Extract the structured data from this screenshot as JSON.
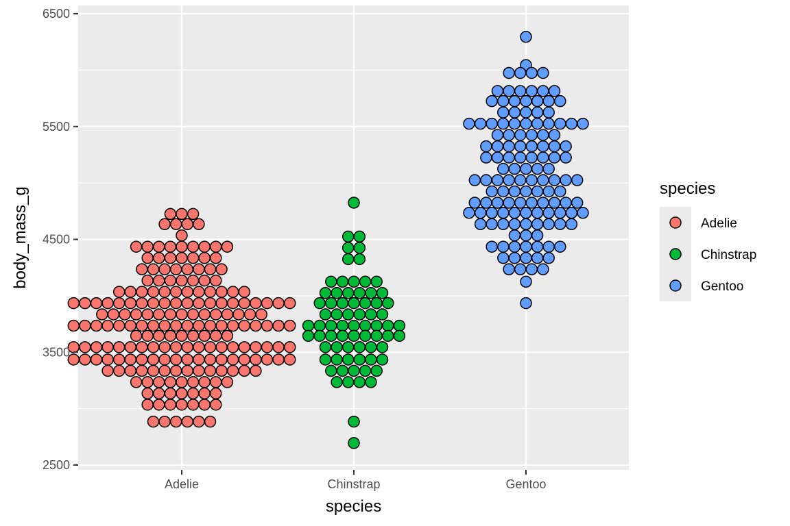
{
  "chart_data": {
    "type": "dotplot",
    "xlabel": "species",
    "ylabel": "body_mass_g",
    "categories": [
      "Adelie",
      "Chinstrap",
      "Gentoo"
    ],
    "ylim": [
      2500,
      6500
    ],
    "yticks": [
      2500,
      3500,
      4500,
      5500,
      6500
    ],
    "grid": true,
    "legend": {
      "title": "species",
      "position": "right"
    },
    "colors": {
      "Adelie": "#F8766D",
      "Chinstrap": "#00BA38",
      "Gentoo": "#619CFF"
    },
    "binwidth_g": 50,
    "series": [
      {
        "name": "Adelie",
        "bins": [
          {
            "y": 4725,
            "count": 3
          },
          {
            "y": 4635,
            "count": 4
          },
          {
            "y": 4535,
            "count": 1
          },
          {
            "y": 4435,
            "count": 9
          },
          {
            "y": 4335,
            "count": 7
          },
          {
            "y": 4235,
            "count": 8
          },
          {
            "y": 4135,
            "count": 7
          },
          {
            "y": 4035,
            "count": 12
          },
          {
            "y": 3935,
            "count": 20
          },
          {
            "y": 3835,
            "count": 15
          },
          {
            "y": 3735,
            "count": 20
          },
          {
            "y": 3645,
            "count": 9
          },
          {
            "y": 3545,
            "count": 20
          },
          {
            "y": 3435,
            "count": 20
          },
          {
            "y": 3335,
            "count": 14
          },
          {
            "y": 3235,
            "count": 9
          },
          {
            "y": 3135,
            "count": 7
          },
          {
            "y": 3035,
            "count": 7
          },
          {
            "y": 2885,
            "count": 6
          }
        ]
      },
      {
        "name": "Chinstrap",
        "bins": [
          {
            "y": 4825,
            "count": 1
          },
          {
            "y": 4525,
            "count": 2
          },
          {
            "y": 4425,
            "count": 2
          },
          {
            "y": 4325,
            "count": 2
          },
          {
            "y": 4125,
            "count": 5
          },
          {
            "y": 4025,
            "count": 6
          },
          {
            "y": 3935,
            "count": 7
          },
          {
            "y": 3835,
            "count": 6
          },
          {
            "y": 3735,
            "count": 9
          },
          {
            "y": 3645,
            "count": 9
          },
          {
            "y": 3545,
            "count": 6
          },
          {
            "y": 3435,
            "count": 6
          },
          {
            "y": 3335,
            "count": 5
          },
          {
            "y": 3235,
            "count": 4
          },
          {
            "y": 2885,
            "count": 1
          },
          {
            "y": 2695,
            "count": 1
          }
        ]
      },
      {
        "name": "Gentoo",
        "bins": [
          {
            "y": 6295,
            "count": 1
          },
          {
            "y": 6045,
            "count": 1
          },
          {
            "y": 5975,
            "count": 4
          },
          {
            "y": 5815,
            "count": 6
          },
          {
            "y": 5725,
            "count": 7
          },
          {
            "y": 5625,
            "count": 5
          },
          {
            "y": 5525,
            "count": 11
          },
          {
            "y": 5425,
            "count": 6
          },
          {
            "y": 5325,
            "count": 8
          },
          {
            "y": 5225,
            "count": 8
          },
          {
            "y": 5125,
            "count": 5
          },
          {
            "y": 5025,
            "count": 10
          },
          {
            "y": 4925,
            "count": 7
          },
          {
            "y": 4825,
            "count": 10
          },
          {
            "y": 4735,
            "count": 11
          },
          {
            "y": 4635,
            "count": 9
          },
          {
            "y": 4535,
            "count": 3
          },
          {
            "y": 4435,
            "count": 7
          },
          {
            "y": 4335,
            "count": 5
          },
          {
            "y": 4235,
            "count": 4
          },
          {
            "y": 4125,
            "count": 1
          },
          {
            "y": 3935,
            "count": 1
          }
        ]
      }
    ]
  }
}
